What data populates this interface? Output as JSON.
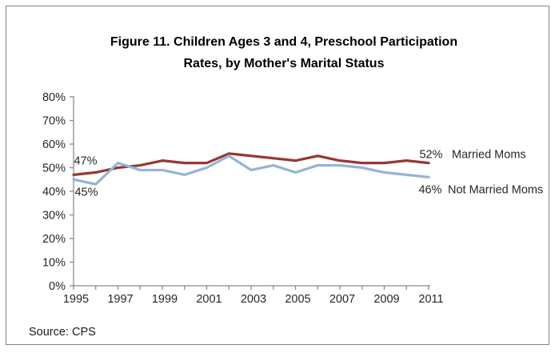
{
  "title": {
    "line1": "Figure 11. Children Ages 3 and 4, Preschool Participation",
    "line2": "Rates, by Mother's Marital Status"
  },
  "source": {
    "text": "Source: CPS"
  },
  "frame": {
    "border_color": "#848484",
    "background": "#ffffff"
  },
  "chart_data": {
    "type": "line",
    "title": "Figure 11. Children Ages 3 and 4, Preschool Participation Rates, by Mother's Marital Status",
    "x": [
      1995,
      1996,
      1997,
      1998,
      1999,
      2000,
      2001,
      2002,
      2003,
      2004,
      2005,
      2006,
      2007,
      2008,
      2009,
      2010,
      2011
    ],
    "x_tick_labels": [
      "1995",
      "1997",
      "1999",
      "2001",
      "2003",
      "2005",
      "2007",
      "2009",
      "2011"
    ],
    "ylim": [
      0,
      80
    ],
    "y_tick_step": 10,
    "y_tick_labels": [
      "0%",
      "10%",
      "20%",
      "30%",
      "40%",
      "50%",
      "60%",
      "70%",
      "80%"
    ],
    "grid": "off",
    "legend_position": "right-of-line-ends",
    "axis_color": "#8c8c8c",
    "text_color": "#262626",
    "series": [
      {
        "name": "Married Moms",
        "color": "#953735",
        "values": [
          47,
          48,
          50,
          51,
          53,
          52,
          52,
          56,
          55,
          54,
          53,
          55,
          53,
          52,
          52,
          53,
          52
        ],
        "start_label": "47%",
        "end_label": "52%"
      },
      {
        "name": "Not Married Moms",
        "color": "#95b3d7",
        "values": [
          45,
          43,
          52,
          49,
          49,
          47,
          50,
          55,
          49,
          51,
          48,
          51,
          51,
          50,
          48,
          47,
          46
        ],
        "start_label": "45%",
        "end_label": "46%"
      }
    ]
  }
}
